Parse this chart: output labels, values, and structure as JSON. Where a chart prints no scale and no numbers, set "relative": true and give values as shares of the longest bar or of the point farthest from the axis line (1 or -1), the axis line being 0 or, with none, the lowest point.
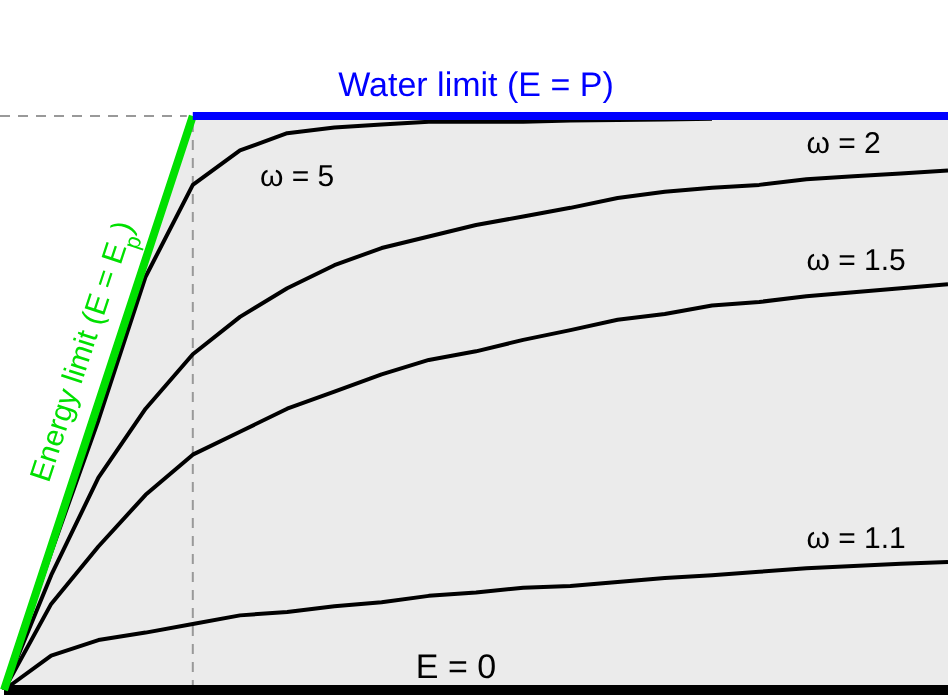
{
  "chart_data": {
    "type": "line",
    "relative": true,
    "categories": [
      null,
      null,
      null,
      null,
      null,
      null,
      null,
      null,
      null,
      null,
      null,
      null,
      null,
      null,
      null,
      null,
      null,
      null,
      null,
      null,
      null
    ],
    "series": [
      {
        "name": "E = 0",
        "color": "#000000",
        "values": [
          0,
          0,
          0,
          0,
          0,
          0,
          0,
          0,
          0,
          0,
          0,
          0,
          0,
          0,
          0,
          0,
          0,
          0,
          0,
          0,
          0
        ]
      },
      {
        "name": "ω = 1.1",
        "color": "#000000",
        "values": [
          0,
          0.06,
          0.087,
          0.1,
          0.115,
          0.13,
          0.136,
          0.146,
          0.153,
          0.164,
          0.17,
          0.178,
          0.181,
          0.188,
          0.195,
          0.2,
          0.206,
          0.212,
          0.216,
          0.22,
          0.223
        ]
      },
      {
        "name": "ω = 1.5",
        "color": "#000000",
        "values": [
          0,
          0.15,
          0.25,
          0.34,
          0.41,
          0.45,
          0.49,
          0.52,
          0.55,
          0.575,
          0.59,
          0.61,
          0.627,
          0.645,
          0.655,
          0.67,
          0.676,
          0.686,
          0.693,
          0.7,
          0.707
        ]
      },
      {
        "name": "ω = 2",
        "color": "#000000",
        "values": [
          0,
          0.2,
          0.37,
          0.49,
          0.585,
          0.65,
          0.7,
          0.74,
          0.77,
          0.79,
          0.81,
          0.825,
          0.84,
          0.857,
          0.868,
          0.875,
          0.88,
          0.89,
          0.895,
          0.9,
          0.905
        ]
      },
      {
        "name": "ω = 5",
        "color": "#000000",
        "values": [
          0,
          0.24,
          0.47,
          0.72,
          0.88,
          0.94,
          0.97,
          0.98,
          0.985,
          0.99,
          0.99,
          0.99,
          0.992,
          0.993,
          0.994,
          0.995,
          null,
          null,
          null,
          null,
          null
        ]
      },
      {
        "name": "Energy limit (E = E$_{p}$)",
        "color": "#00e000",
        "values": [
          0,
          0.25,
          0.5,
          0.75,
          1,
          null,
          null,
          null,
          null,
          null,
          null,
          null,
          null,
          null,
          null,
          null,
          null,
          null,
          null,
          null,
          null
        ]
      },
      {
        "name": "Water limit (E = P)",
        "color": "#0000ff",
        "values": [
          null,
          null,
          null,
          null,
          1,
          1,
          1,
          1,
          1,
          1,
          1,
          1,
          1,
          1,
          1,
          1,
          1,
          1,
          1,
          1,
          1
        ]
      }
    ],
    "ref_lines": [
      {
        "axis": "y",
        "value": 1,
        "color": "#999999",
        "line_style": "dashed"
      }
    ]
  }
}
